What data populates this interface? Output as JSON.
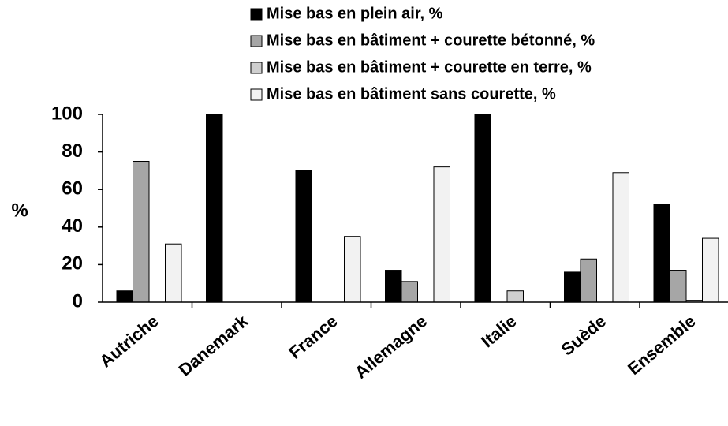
{
  "chart_data": {
    "type": "bar",
    "y_label": "%",
    "categories": [
      "Autriche",
      "Danemark",
      "France",
      "Allemagne",
      "Italie",
      "Suède",
      "Ensemble"
    ],
    "series": [
      {
        "name": "Mise bas en plein air, %",
        "color": "#000000",
        "values": [
          6,
          100,
          70,
          17,
          100,
          16,
          52
        ]
      },
      {
        "name": "Mise bas en bâtiment + courette bétonné, %",
        "color": "#a6a6a6",
        "values": [
          75,
          0,
          0,
          11,
          0,
          23,
          17
        ]
      },
      {
        "name": "Mise bas en bâtiment + courette en terre, %",
        "color": "#cfcfcf",
        "values": [
          0,
          0,
          0,
          0,
          6,
          0,
          1
        ]
      },
      {
        "name": "Mise bas en bâtiment sans courette, %",
        "color": "#f2f2f2",
        "values": [
          31,
          0,
          35,
          72,
          0,
          69,
          34
        ]
      }
    ],
    "ylim": [
      0,
      100
    ],
    "yticks": [
      0,
      20,
      40,
      60,
      80,
      100
    ],
    "grid": false
  }
}
